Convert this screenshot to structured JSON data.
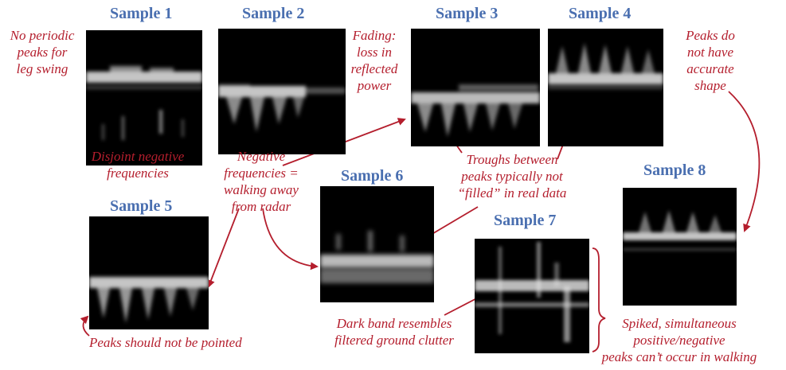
{
  "samples": [
    {
      "title": "Sample 1"
    },
    {
      "title": "Sample 2"
    },
    {
      "title": "Sample 3"
    },
    {
      "title": "Sample 4"
    },
    {
      "title": "Sample 5"
    },
    {
      "title": "Sample 6"
    },
    {
      "title": "Sample 7"
    },
    {
      "title": "Sample 8"
    }
  ],
  "annotations": {
    "no_periodic_peaks": [
      "No periodic",
      "peaks for",
      "leg swing"
    ],
    "disjoint_negative": [
      "Disjoint negative",
      "frequencies"
    ],
    "fading": [
      "Fading:",
      "loss in",
      "reflected",
      "power"
    ],
    "negative_frequencies": [
      "Negative",
      "frequencies =",
      "walking away",
      "from radar"
    ],
    "troughs": [
      "Troughs between",
      "peaks typically not",
      "“filled” in real data"
    ],
    "peaks_accurate": [
      "Peaks do",
      "not have",
      "accurate",
      "shape"
    ],
    "peaks_pointed": [
      "Peaks should not be pointed"
    ],
    "dark_band": [
      "Dark band resembles",
      "filtered ground clutter"
    ],
    "spiked": [
      "Spiked, simultaneous",
      "positive/negative",
      "peaks can’t occur in walking"
    ]
  },
  "colors": {
    "title": "#4a6fb0",
    "annotation": "#b41e2d",
    "spectrogram_bg": "#000000"
  }
}
